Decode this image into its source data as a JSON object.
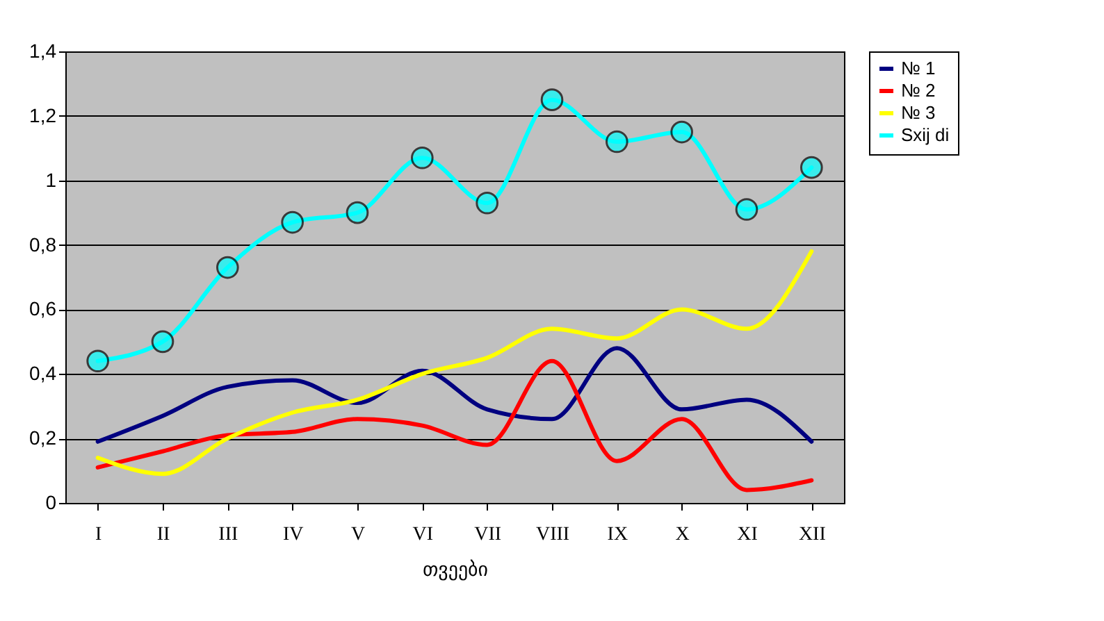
{
  "chart_data": {
    "type": "line",
    "xlabel": "თვეები",
    "categories": [
      "I",
      "II",
      "III",
      "IV",
      "V",
      "VI",
      "VII",
      "VIII",
      "IX",
      "X",
      "XI",
      "XII"
    ],
    "series": [
      {
        "name": "№  1",
        "color": "#000080",
        "marker": "none",
        "values": [
          0.19,
          0.27,
          0.36,
          0.38,
          0.31,
          0.41,
          0.29,
          0.26,
          0.48,
          0.29,
          0.32,
          0.19
        ]
      },
      {
        "name": "№  2",
        "color": "#ff0000",
        "marker": "none",
        "values": [
          0.11,
          0.16,
          0.21,
          0.22,
          0.26,
          0.24,
          0.18,
          0.44,
          0.13,
          0.26,
          0.04,
          0.07
        ]
      },
      {
        "name": "№  3",
        "color": "#ffff00",
        "marker": "none",
        "values": [
          0.14,
          0.09,
          0.2,
          0.28,
          0.32,
          0.4,
          0.45,
          0.54,
          0.51,
          0.6,
          0.54,
          0.78
        ]
      },
      {
        "name": "Sxij di",
        "color": "#00ffff",
        "marker": "circle",
        "values": [
          0.44,
          0.5,
          0.73,
          0.87,
          0.9,
          1.07,
          0.93,
          1.25,
          1.12,
          1.15,
          0.91,
          1.04
        ]
      }
    ],
    "ylim": [
      0,
      1.4
    ],
    "yticks": [
      {
        "value": 0,
        "label": "0"
      },
      {
        "value": 0.2,
        "label": "0,2"
      },
      {
        "value": 0.4,
        "label": "0,4"
      },
      {
        "value": 0.6,
        "label": "0,6"
      },
      {
        "value": 0.8,
        "label": "0,8"
      },
      {
        "value": 1,
        "label": "1"
      },
      {
        "value": 1.2,
        "label": "1,2"
      },
      {
        "value": 1.4,
        "label": "1,4"
      }
    ],
    "grid": "y",
    "legend": "right",
    "line_style": "solid"
  }
}
